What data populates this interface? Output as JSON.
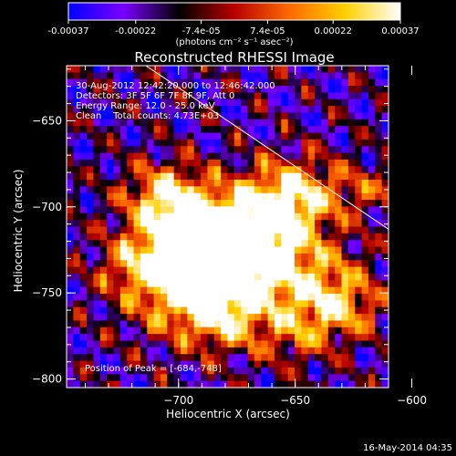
{
  "colorbar": {
    "ticks": [
      "-0.00037",
      "-0.00022",
      "-7.4e-05",
      "7.4e-05",
      "0.00022",
      "0.00037"
    ],
    "values": [
      -0.00037,
      -0.00022,
      -7.4e-05,
      7.4e-05,
      0.00022,
      0.00037
    ],
    "range": [
      -0.00037,
      0.00037
    ],
    "units": "(photons cm⁻² s⁻¹ asec⁻²)",
    "colors": [
      "#0000ff",
      "#7a00ff",
      "#000000",
      "#b80000",
      "#ff6a00",
      "#ffd000",
      "#ffffff"
    ]
  },
  "chart_data": {
    "type": "heatmap",
    "title": "Reconstructed RHESSI Image",
    "xlabel": "Heliocentric X (arcsec)",
    "ylabel": "Heliocentric Y (arcsec)",
    "xlim": [
      -748,
      -610
    ],
    "ylim": [
      -805,
      -618
    ],
    "xticks": [
      -700,
      -650,
      -600
    ],
    "xtick_labels": [
      "−700",
      "−650",
      "−600"
    ],
    "yticks": [
      -650,
      -700,
      -750,
      -800
    ],
    "ytick_labels": [
      "−650",
      "−700",
      "−750",
      "−800"
    ],
    "info_lines": [
      "30-Aug-2012 12:42:20.000 to 12:46:42.000",
      "Detectors: 3F 5F 6F 7F 8F 9F, Att 0",
      "Energy Range: 12.0 - 25.0 keV",
      "Clean    Total counts: 4.73E+03"
    ],
    "peak_label": "Position of Peak = [-684,-748]",
    "peak": [
      -684,
      -748
    ],
    "limb_line": [
      [
        -714,
        -618
      ],
      [
        -610,
        -713
      ]
    ]
  },
  "footer": {
    "date": "16-May-2014 04:35"
  }
}
